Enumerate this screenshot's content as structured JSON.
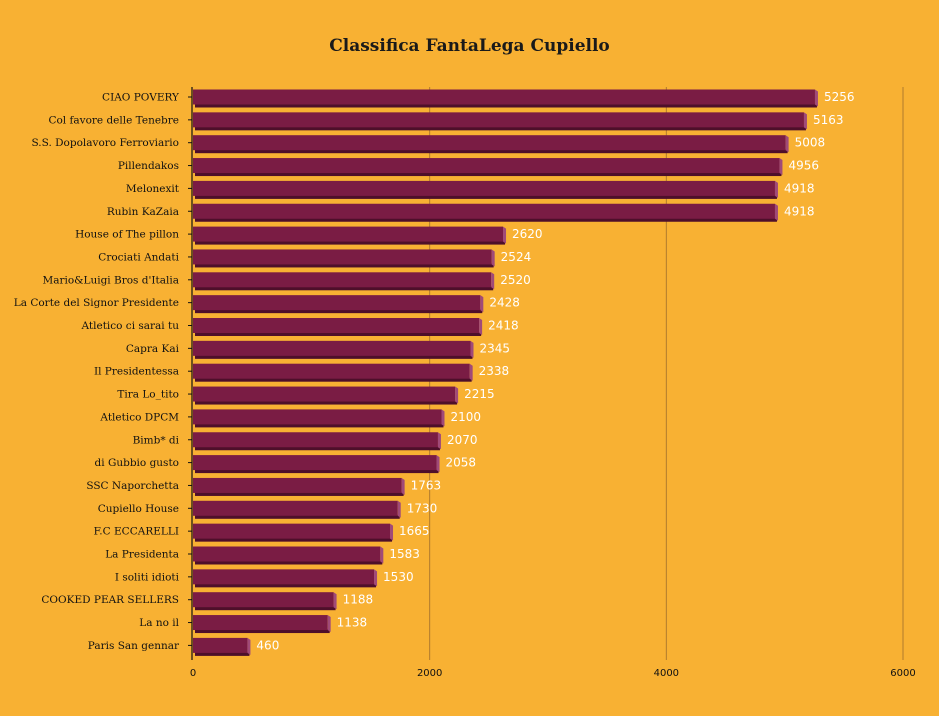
{
  "chart_data": {
    "type": "bar",
    "orientation": "horizontal",
    "title": "Classifica FantaLega Cupiello",
    "categories": [
      "CIAO POVERY",
      "Col favore delle Tenebre",
      "S.S. Dopolavoro Ferroviario",
      "Pillendakos",
      "Melonexit",
      "Rubin KaZaia",
      "House of The pillon",
      "Crociati Andati",
      "Mario&Luigi Bros d'Italia",
      "La Corte del Signor Presidente",
      "Atletico ci sarai tu",
      "Capra Kai",
      "Il Presidentessa",
      "Tira Lo_tito",
      "Atletico DPCM",
      "Bimb* di",
      "di Gubbio gusto",
      "SSC Naporchetta",
      "Cupiello House",
      "F.C ECCARELLI",
      "La Presidenta",
      "I soliti idioti",
      "COOKED PEAR SELLERS",
      "La no il",
      "Paris San gennar"
    ],
    "values": [
      5256,
      5163,
      5008,
      4956,
      4918,
      4918,
      2620,
      2524,
      2520,
      2428,
      2418,
      2345,
      2338,
      2215,
      2100,
      2070,
      2058,
      1763,
      1730,
      1665,
      1583,
      1530,
      1188,
      1138,
      460
    ],
    "xlim": [
      0,
      6000
    ],
    "xticks": [
      "0",
      "2000",
      "4000",
      "6000"
    ],
    "grid": true,
    "colors": {
      "background": "#F8B133",
      "bar": "#7A1C44",
      "bar_shadow": "#4E0F2A",
      "bar_side": "#A04A78",
      "grid": "#B07A2E",
      "value_label": "#FFFFFF"
    }
  }
}
